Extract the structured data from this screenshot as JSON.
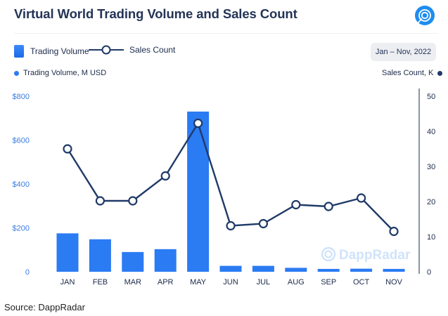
{
  "title": "Virtual World Trading Volume and Sales Count",
  "legend": {
    "volume": "Trading Volume",
    "sales": "Sales Count"
  },
  "date_range": "Jan – Nov, 2022",
  "left_axis_title": "Trading Volume, M USD",
  "right_axis_title": "Sales Count, K",
  "watermark": "DappRadar",
  "source": "Source: DappRadar",
  "colors": {
    "bar": "#2b7bf3",
    "line": "#1f3a68",
    "axis_text": "#3b7de0"
  },
  "chart_data": {
    "type": "bar",
    "categories": [
      "JAN",
      "FEB",
      "MAR",
      "APR",
      "MAY",
      "JUN",
      "JUL",
      "AUG",
      "SEP",
      "OCT",
      "NOV"
    ],
    "series": [
      {
        "name": "Trading Volume",
        "type": "bar",
        "axis": "left",
        "values": [
          175,
          148,
          90,
          103,
          730,
          27,
          27,
          18,
          13,
          14,
          13
        ]
      },
      {
        "name": "Sales Count",
        "type": "line",
        "axis": "right",
        "values": [
          35,
          20.2,
          20.2,
          27.3,
          42.3,
          13.1,
          13.7,
          19.1,
          18.6,
          21,
          11.5
        ]
      }
    ],
    "left_axis": {
      "min": 0,
      "max": 800,
      "ticks": [
        0,
        200,
        400,
        600,
        800
      ],
      "tick_labels": [
        "0",
        "$200",
        "$400",
        "$600",
        "$800"
      ]
    },
    "right_axis": {
      "min": 0,
      "max": 50,
      "ticks": [
        0,
        10,
        20,
        30,
        40,
        50
      ],
      "tick_labels": [
        "0",
        "10",
        "20",
        "30",
        "40",
        "50"
      ]
    },
    "grid": false,
    "legend_position": "top-left"
  }
}
